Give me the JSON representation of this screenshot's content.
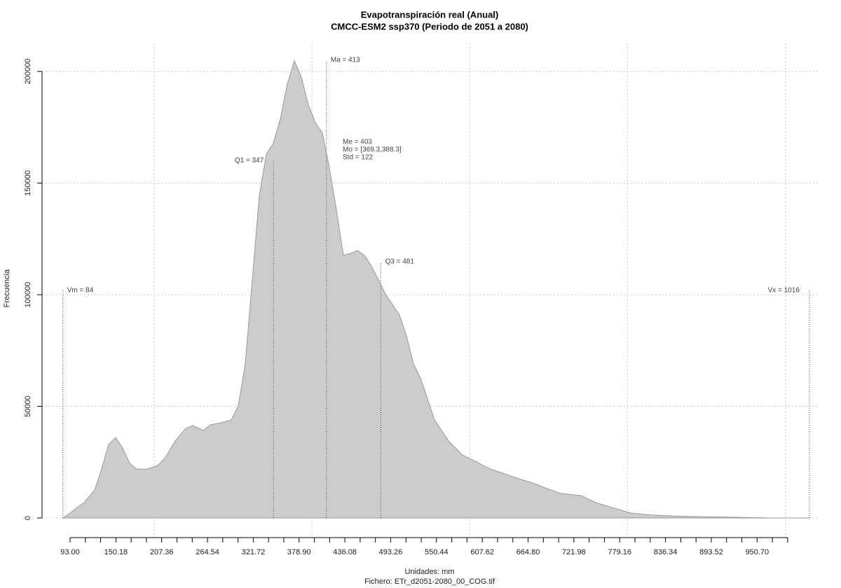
{
  "chart_data": {
    "type": "area",
    "title": "Evapotranspiración real (Anual)",
    "subtitle": "CMCC-ESM2 ssp370 (Periodo de 2051 a 2080)",
    "x_label": "Unidades: mm",
    "caption": "Fichero: ETr_d2051-2080_00_COG.tif",
    "y_label": "Frecuencia",
    "color": "#cccccc",
    "grid": true,
    "x": [
      84.2,
      93,
      101.7,
      110.5,
      123.6,
      132.4,
      141.1,
      149.9,
      158.6,
      167.4,
      176.1,
      189.2,
      202.4,
      211.1,
      224.2,
      237.4,
      246.1,
      259.2,
      268.0,
      281.1,
      294.2,
      303.0,
      311.7,
      320.5,
      329.2,
      338.0,
      346.7,
      355.5,
      364.2,
      373.0,
      381.7,
      390.5,
      399.2,
      408.0,
      416.7,
      425.5,
      434.2,
      443.0,
      451.7,
      460.5,
      469.2,
      478.0,
      486.7,
      495.5,
      504.2,
      513.0,
      521.7,
      530.5,
      548.0,
      565.5,
      583.0,
      600.5,
      618.0,
      635.5,
      653.0,
      670.5,
      688.0,
      705.5,
      723.0,
      731.7,
      749.2,
      775.5,
      793.0,
      819.2,
      845.5,
      880.5,
      924.2,
      968.0,
      1016
    ],
    "values": [
      0,
      2200,
      4700,
      6900,
      12500,
      21900,
      32900,
      36000,
      31400,
      24500,
      21900,
      21900,
      23500,
      26600,
      34500,
      40100,
      41400,
      39200,
      41700,
      42600,
      43900,
      50200,
      69000,
      106600,
      144200,
      163000,
      167700,
      178700,
      194400,
      204700,
      197500,
      185000,
      177100,
      172400,
      156800,
      138000,
      117600,
      118500,
      119800,
      117600,
      112900,
      106600,
      100300,
      95600,
      90900,
      81500,
      69000,
      62700,
      43900,
      34500,
      28200,
      25100,
      21900,
      19800,
      17600,
      15700,
      13200,
      11000,
      10300,
      10000,
      6900,
      4100,
      2200,
      1300,
      900,
      600,
      300,
      0,
      0
    ],
    "xlim": [
      58.0,
      1029.2
    ],
    "ylim": [
      -8777,
      212539
    ],
    "xticks": [
      {
        "value": 93,
        "label": "93.00"
      },
      {
        "value": 150.18,
        "label": "150.18"
      },
      {
        "value": 207.36,
        "label": "207.36"
      },
      {
        "value": 264.54,
        "label": "264.54"
      },
      {
        "value": 321.72,
        "label": "321.72"
      },
      {
        "value": 378.9,
        "label": "378.90"
      },
      {
        "value": 436.08,
        "label": "436.08"
      },
      {
        "value": 493.26,
        "label": "493.26"
      },
      {
        "value": 550.44,
        "label": "550.44"
      },
      {
        "value": 607.62,
        "label": "607.62"
      },
      {
        "value": 664.8,
        "label": "664.80"
      },
      {
        "value": 721.98,
        "label": "721.98"
      },
      {
        "value": 779.16,
        "label": "779.16"
      },
      {
        "value": 836.34,
        "label": "836.34"
      },
      {
        "value": 893.52,
        "label": "893.52"
      },
      {
        "value": 950.7,
        "label": "950.70"
      }
    ],
    "xminorticks": [
      112.06,
      131.12,
      169.24,
      188.3,
      226.42,
      245.48,
      283.6,
      302.66,
      340.78,
      359.84,
      397.96,
      417.02,
      455.14,
      474.2,
      512.32,
      531.38,
      569.5,
      588.56,
      626.68,
      645.74,
      683.86,
      702.92,
      741.04,
      760.1,
      798.22,
      817.28,
      855.4,
      874.46,
      912.58,
      931.64,
      969.76,
      988.82
    ],
    "xgrid": [
      198,
      395,
      592,
      789,
      986
    ],
    "yticks": [
      0,
      50000,
      100000,
      150000,
      200000
    ],
    "markers": [
      {
        "label": "Vm = 84",
        "x": 84,
        "y": 102000
      },
      {
        "label": "Q1 = 347",
        "x": 347,
        "y": 160000
      },
      {
        "label": "Ma = 413",
        "x": 413,
        "y": 205000
      },
      {
        "label": "Q3 = 481",
        "x": 481,
        "y": 114700
      },
      {
        "label": "Vx = 1016",
        "x": 1016,
        "y": 102000
      }
    ],
    "stats": [
      "Me = 403",
      "Mo = [369.3,388.3]",
      "Std = 122"
    ]
  }
}
